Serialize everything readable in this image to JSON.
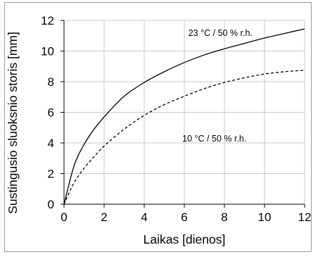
{
  "chart_data": {
    "type": "line",
    "title": "",
    "xlabel": "Laikas [dienos]",
    "ylabel": "Sustingusio sluoksnio storis [mm]",
    "xlim": [
      0,
      12
    ],
    "ylim": [
      0,
      12
    ],
    "x_ticks": [
      0,
      2,
      4,
      6,
      8,
      10,
      12
    ],
    "y_ticks": [
      0,
      2,
      4,
      6,
      8,
      10,
      12
    ],
    "grid": true,
    "legend": "none",
    "series": [
      {
        "name": "23 °C / 50 % r.h.",
        "style": "solid",
        "color": "#000000",
        "x": [
          0,
          0.5,
          1,
          1.5,
          2,
          3,
          4,
          5,
          6,
          7,
          8,
          9,
          10,
          11,
          12
        ],
        "values": [
          0,
          2.5,
          3.9,
          4.9,
          5.7,
          7.05,
          7.95,
          8.65,
          9.25,
          9.75,
          10.15,
          10.5,
          10.85,
          11.15,
          11.45
        ]
      },
      {
        "name": "10 °C / 50 % r.h.",
        "style": "dashed",
        "color": "#000000",
        "x": [
          0,
          0.5,
          1,
          1.5,
          2,
          3,
          4,
          5,
          6,
          7,
          8,
          9,
          10,
          11,
          12
        ],
        "values": [
          0,
          1.4,
          2.35,
          3.1,
          3.8,
          4.9,
          5.8,
          6.5,
          7.05,
          7.55,
          7.95,
          8.25,
          8.5,
          8.65,
          8.75
        ]
      }
    ],
    "annotations": [
      {
        "text": "23 °C / 50 % r.h.",
        "x": 7.8,
        "y": 11.0
      },
      {
        "text": "10 °C / 50 % r.h.",
        "x": 7.5,
        "y": 4.1
      }
    ]
  }
}
